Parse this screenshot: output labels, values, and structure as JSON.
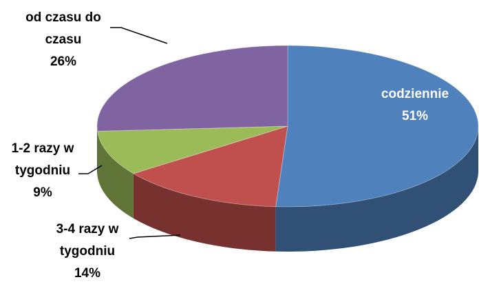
{
  "chart_data": {
    "type": "pie3d",
    "categories": [
      "codziennie",
      "3-4 razy w tygodniu",
      "1-2 razy w tygodniu",
      "od czasu do czasu"
    ],
    "values": [
      51,
      14,
      9,
      26
    ],
    "value_labels": [
      "51%",
      "14%",
      "9%",
      "26%"
    ],
    "colors": [
      "#4f81bd",
      "#c0504d",
      "#9bbb59",
      "#8064a2"
    ]
  }
}
